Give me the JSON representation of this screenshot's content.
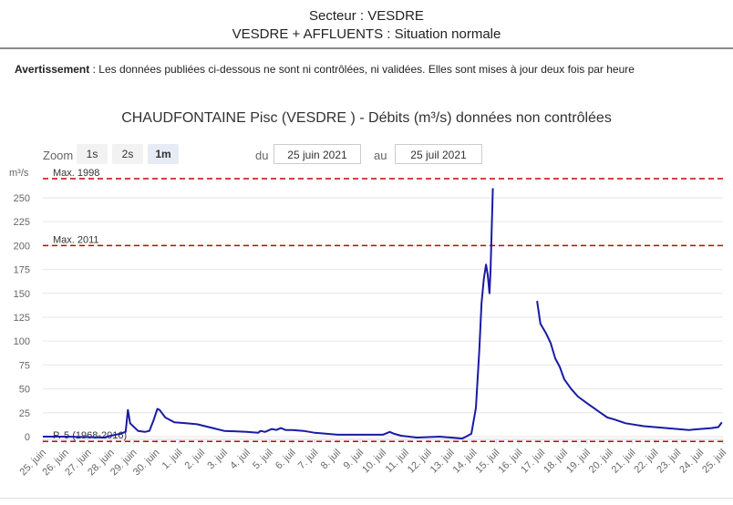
{
  "header": {
    "line1": "Secteur : VESDRE",
    "line2": "VESDRE + AFFLUENTS : Situation normale"
  },
  "warning": {
    "label": "Avertissement",
    "text": " : Les données publiées ci-dessous ne sont ni contrôlées, ni validées. Elles sont mises à jour deux fois par heure"
  },
  "toolbar": {
    "zoom_label": "Zoom",
    "zoom_buttons": [
      "1s",
      "2s",
      "1m"
    ],
    "zoom_active": "1m",
    "from_label": "du",
    "from_value": "25 juin 2021",
    "to_label": "au",
    "to_value": "25 juil 2021"
  },
  "chart_data": {
    "type": "line",
    "title": "CHAUDFONTAINE Pisc (VESDRE ) - Débits (m³/s) données non contrôlées",
    "ylabel": "m³/s",
    "ylim": [
      0,
      270
    ],
    "yticks": [
      0,
      25,
      50,
      75,
      100,
      125,
      150,
      175,
      200,
      225,
      250
    ],
    "xlim": [
      0,
      30
    ],
    "x_unit": "days since 25 juin 2021",
    "xtick_labels": [
      "25. juin",
      "26. juin",
      "27. juin",
      "28. juin",
      "29. juin",
      "30. juin",
      "1. juil",
      "2. juil",
      "3. juil",
      "4. juil",
      "5. juil",
      "6. juil",
      "7. juil",
      "8. juil",
      "9. juil",
      "10. juil",
      "11. juil",
      "12. juil",
      "13. juil",
      "14. juil",
      "15. juil",
      "16. juil",
      "17. juil",
      "18. juil",
      "19. juil",
      "20. juil",
      "21. juil",
      "22. juil",
      "23. juil",
      "24. juil",
      "25. juil"
    ],
    "grid": true,
    "color": "#1a1aa6",
    "reference_lines": [
      {
        "label": "Max. 1998",
        "value": 270,
        "color": "#cc0000"
      },
      {
        "label": "Max. 2011",
        "value": 200,
        "color": "#cc0000"
      },
      {
        "label": "P. 5 (1968-2016)",
        "value": -5,
        "color": "#cc0000"
      }
    ],
    "series": [
      {
        "segments": [
          [
            [
              0,
              0
            ],
            [
              1,
              0
            ],
            [
              2,
              -0.5
            ],
            [
              2.7,
              -1
            ],
            [
              3.0,
              1
            ],
            [
              3.4,
              3
            ],
            [
              3.65,
              5
            ],
            [
              3.75,
              28
            ],
            [
              3.85,
              14
            ],
            [
              4.2,
              6
            ],
            [
              4.5,
              5
            ],
            [
              4.7,
              6
            ],
            [
              4.9,
              18
            ],
            [
              5.05,
              29
            ],
            [
              5.15,
              28
            ],
            [
              5.4,
              20
            ],
            [
              5.8,
              15
            ],
            [
              6.3,
              14
            ],
            [
              6.8,
              13
            ],
            [
              7.5,
              9
            ],
            [
              8,
              6
            ],
            [
              9,
              5
            ],
            [
              9.5,
              4
            ],
            [
              9.6,
              6
            ],
            [
              9.8,
              5
            ],
            [
              10.1,
              8
            ],
            [
              10.3,
              7
            ],
            [
              10.5,
              9
            ],
            [
              10.7,
              7
            ],
            [
              11,
              7
            ],
            [
              11.5,
              6
            ],
            [
              12,
              4
            ],
            [
              13,
              2
            ],
            [
              14,
              2
            ],
            [
              15,
              2
            ],
            [
              15.3,
              5
            ],
            [
              15.5,
              3
            ],
            [
              15.8,
              1
            ],
            [
              16.5,
              -1
            ],
            [
              17.5,
              0
            ],
            [
              18,
              -1
            ],
            [
              18.5,
              -2
            ],
            [
              18.9,
              3
            ],
            [
              19.1,
              30
            ],
            [
              19.25,
              90
            ],
            [
              19.35,
              140
            ],
            [
              19.45,
              165
            ],
            [
              19.55,
              180
            ],
            [
              19.62,
              170
            ],
            [
              19.7,
              150
            ],
            [
              19.75,
              175
            ],
            [
              19.85,
              260
            ]
          ],
          [
            [
              21.8,
              142
            ],
            [
              21.95,
              118
            ],
            [
              22.2,
              108
            ],
            [
              22.4,
              98
            ],
            [
              22.6,
              82
            ],
            [
              22.8,
              73
            ],
            [
              23.0,
              60
            ],
            [
              23.3,
              50
            ],
            [
              23.6,
              42
            ],
            [
              24.0,
              35
            ],
            [
              24.3,
              30
            ],
            [
              24.6,
              25
            ],
            [
              24.9,
              20
            ],
            [
              25.2,
              18
            ],
            [
              25.7,
              14
            ],
            [
              26.5,
              11
            ],
            [
              27.5,
              9
            ],
            [
              28.5,
              7
            ],
            [
              29.0,
              8
            ],
            [
              29.5,
              9
            ],
            [
              29.8,
              10
            ],
            [
              29.95,
              15
            ]
          ]
        ]
      }
    ]
  }
}
